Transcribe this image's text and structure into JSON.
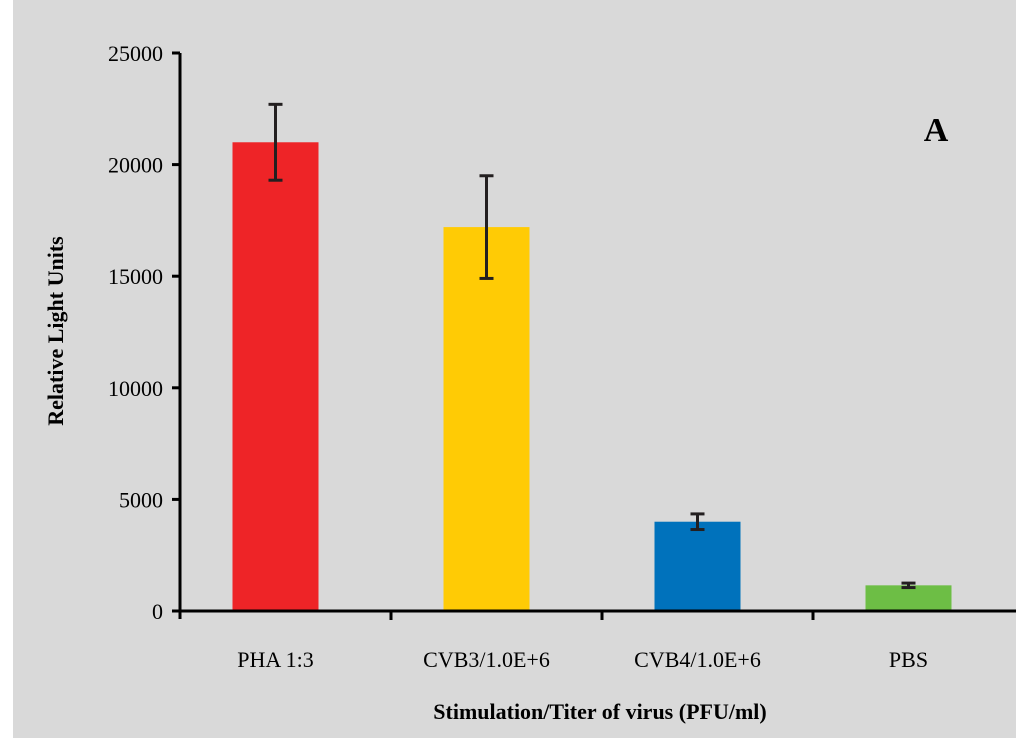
{
  "chart_data": {
    "type": "bar",
    "title": "",
    "panel_label": "A",
    "xlabel": "Stimulation/Titer of virus (PFU/ml)",
    "ylabel": "Relative Light Units",
    "ylim": [
      0,
      25000
    ],
    "yticks": [
      0,
      5000,
      10000,
      15000,
      20000,
      25000
    ],
    "categories": [
      "PHA 1:3",
      "CVB3/1.0E+6",
      "CVB4/1.0E+6",
      "PBS"
    ],
    "values": [
      21000,
      17200,
      4000,
      1150
    ],
    "errors": [
      1700,
      2300,
      350,
      100
    ],
    "colors": [
      "#ee2427",
      "#ffcb05",
      "#0072bc",
      "#6dbe45"
    ],
    "grid": false,
    "legend": "none"
  }
}
